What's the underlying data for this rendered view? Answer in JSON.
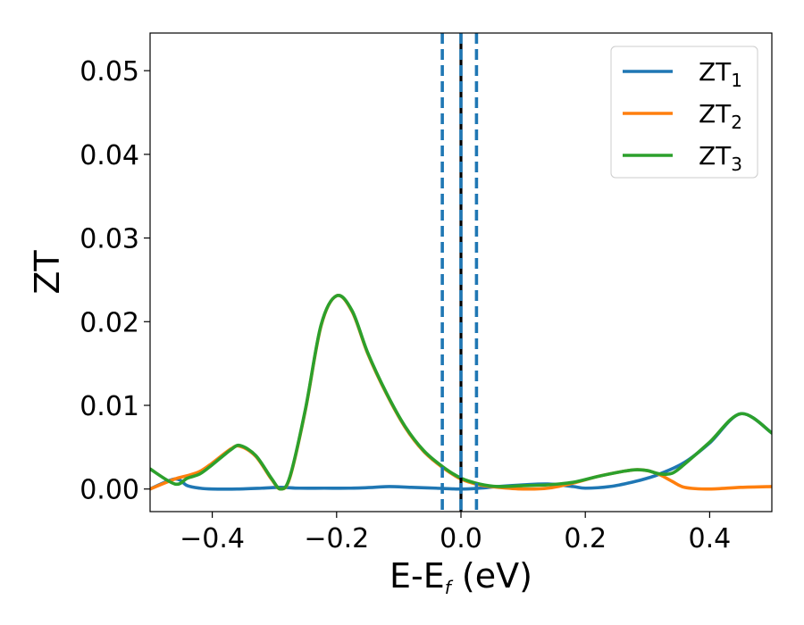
{
  "chart_data": {
    "type": "line",
    "title": "",
    "xlabel": "E-E",
    "xlabel_sub": "f",
    "xlabel_unit": " (eV)",
    "ylabel": "ZT",
    "xlim": [
      -0.5,
      0.5
    ],
    "ylim": [
      -0.0027,
      0.0545
    ],
    "xticks": [
      -0.4,
      -0.2,
      0.0,
      0.2,
      0.4
    ],
    "xtick_labels": [
      "−0.4",
      "−0.2",
      "0.0",
      "0.2",
      "0.4"
    ],
    "yticks": [
      0.0,
      0.01,
      0.02,
      0.03,
      0.04,
      0.05
    ],
    "ytick_labels": [
      "0.00",
      "0.01",
      "0.02",
      "0.03",
      "0.04",
      "0.05"
    ],
    "grid": false,
    "legend_position": "top-right",
    "series": [
      {
        "name": "ZT",
        "name_sub": "1",
        "color": "#1f77b4",
        "x": [
          -0.5,
          -0.46,
          -0.44,
          -0.42,
          -0.4,
          -0.36,
          -0.32,
          -0.29,
          -0.26,
          -0.22,
          -0.18,
          -0.14,
          -0.115,
          -0.08,
          -0.04,
          0.0,
          0.03,
          0.06,
          0.1,
          0.14,
          0.18,
          0.2,
          0.24,
          0.28,
          0.3,
          0.32,
          0.36,
          0.4,
          0.45,
          0.5
        ],
        "y": [
          0.0,
          0.0012,
          0.0004,
          0.0001,
          0.0,
          0.0,
          0.0001,
          0.0002,
          0.0001,
          0.0001,
          0.0001,
          0.0002,
          0.0003,
          0.0002,
          0.0001,
          0.0,
          0.0001,
          0.0003,
          0.0005,
          0.0006,
          0.0003,
          0.0001,
          0.0003,
          0.0009,
          0.0013,
          0.0018,
          0.0032,
          0.0055,
          0.009,
          0.0067
        ]
      },
      {
        "name": "ZT",
        "name_sub": "2",
        "color": "#ff7f0e",
        "x": [
          -0.5,
          -0.46,
          -0.44,
          -0.42,
          -0.4,
          -0.37,
          -0.355,
          -0.33,
          -0.305,
          -0.29,
          -0.275,
          -0.25,
          -0.225,
          -0.2,
          -0.175,
          -0.15,
          -0.12,
          -0.09,
          -0.06,
          -0.03,
          0.0,
          0.03,
          0.06,
          0.1,
          0.14,
          0.18,
          0.22,
          0.26,
          0.28,
          0.3,
          0.32,
          0.34,
          0.36,
          0.4,
          0.45,
          0.5
        ],
        "y": [
          0.0,
          0.0012,
          0.0016,
          0.0021,
          0.0031,
          0.0048,
          0.0051,
          0.0039,
          0.0012,
          0.0,
          0.0014,
          0.0095,
          0.0195,
          0.0231,
          0.0212,
          0.0162,
          0.0114,
          0.0074,
          0.0045,
          0.0026,
          0.0012,
          0.0005,
          0.0002,
          0.0,
          0.0001,
          0.0007,
          0.0015,
          0.0021,
          0.0023,
          0.0022,
          0.0017,
          0.0009,
          0.0002,
          0.0,
          0.0002,
          0.0003
        ]
      },
      {
        "name": "ZT",
        "name_sub": "3",
        "color": "#2ca02c",
        "x": [
          -0.5,
          -0.46,
          -0.44,
          -0.42,
          -0.4,
          -0.37,
          -0.355,
          -0.33,
          -0.305,
          -0.29,
          -0.275,
          -0.25,
          -0.225,
          -0.2,
          -0.175,
          -0.15,
          -0.12,
          -0.09,
          -0.06,
          -0.03,
          0.0,
          0.03,
          0.06,
          0.1,
          0.14,
          0.18,
          0.22,
          0.26,
          0.28,
          0.3,
          0.32,
          0.34,
          0.36,
          0.4,
          0.45,
          0.5
        ],
        "y": [
          0.0024,
          0.0006,
          0.0013,
          0.0018,
          0.0029,
          0.0047,
          0.0052,
          0.004,
          0.0013,
          0.0,
          0.0015,
          0.0096,
          0.0196,
          0.0231,
          0.0213,
          0.0163,
          0.0115,
          0.0075,
          0.0046,
          0.0027,
          0.0013,
          0.0006,
          0.0003,
          0.0004,
          0.0005,
          0.0008,
          0.0015,
          0.0021,
          0.0023,
          0.0022,
          0.0018,
          0.0019,
          0.003,
          0.0056,
          0.009,
          0.0067
        ]
      }
    ],
    "vertical_lines": [
      {
        "x": 0.0,
        "color": "#000000",
        "style": "solid"
      },
      {
        "x": -0.03,
        "color": "#1f77b4",
        "style": "dashed"
      },
      {
        "x": 0.0,
        "color": "#1f77b4",
        "style": "dashed"
      },
      {
        "x": 0.025,
        "color": "#1f77b4",
        "style": "dashed"
      }
    ]
  }
}
